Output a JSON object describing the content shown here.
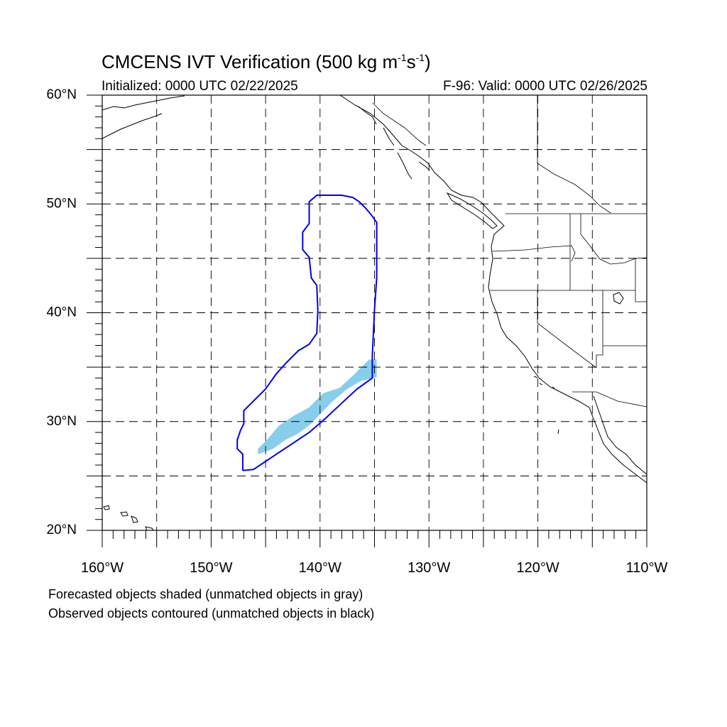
{
  "title": {
    "prefix": "CMCENS IVT Verification (500 kg m",
    "exp1": "-1",
    "mid": "s",
    "exp2": "-1",
    "suffix": ")"
  },
  "initialized": "Initialized: 0000 UTC 02/22/2025",
  "valid": "F-96: Valid: 0000 UTC 02/26/2025",
  "captions": [
    "Forecasted objects shaded (unmatched objects in gray)",
    "Observed objects contoured (unmatched objects in black)"
  ],
  "map": {
    "lon_range": [
      -160,
      -110
    ],
    "lat_range": [
      20,
      60
    ],
    "projection": "cylindrical equidistant",
    "gridlines": "dashed every 5 degrees",
    "lat_labels": [
      "20°N",
      "30°N",
      "40°N",
      "50°N",
      "60°N"
    ],
    "lat_label_values": [
      20,
      30,
      40,
      50,
      60
    ],
    "lon_labels": [
      "160°W",
      "150°W",
      "140°W",
      "130°W",
      "120°W",
      "110°W"
    ],
    "lon_label_values": [
      -160,
      -150,
      -140,
      -130,
      -120,
      -110
    ],
    "colors": {
      "forecast_shading": "#87ceeb",
      "observed_contour": "#0000ee",
      "coastline": "#000000",
      "grid": "#000000"
    },
    "forecast_object_shaded": [
      [
        -145.7,
        27.5
      ],
      [
        -144.8,
        28.4
      ],
      [
        -143.8,
        29.6
      ],
      [
        -142.3,
        30.6
      ],
      [
        -141.0,
        31.3
      ],
      [
        -139.7,
        32.6
      ],
      [
        -138.2,
        33.1
      ],
      [
        -137.0,
        34.2
      ],
      [
        -135.5,
        35.7
      ],
      [
        -134.8,
        35.7
      ],
      [
        -134.8,
        34.1
      ],
      [
        -136.3,
        33.7
      ],
      [
        -137.5,
        33.0
      ],
      [
        -138.8,
        31.9
      ],
      [
        -139.8,
        30.9
      ],
      [
        -140.8,
        29.8
      ],
      [
        -142.0,
        28.9
      ],
      [
        -143.2,
        28.3
      ],
      [
        -144.3,
        27.5
      ],
      [
        -145.7,
        27.0
      ]
    ],
    "observed_object_contour": [
      [
        -147.1,
        25.5
      ],
      [
        -146.1,
        25.6
      ],
      [
        -145.2,
        26.2
      ],
      [
        -144.0,
        27.0
      ],
      [
        -142.5,
        28.0
      ],
      [
        -141.0,
        29.0
      ],
      [
        -139.5,
        30.3
      ],
      [
        -138.1,
        31.6
      ],
      [
        -136.6,
        33.0
      ],
      [
        -135.2,
        34.0
      ],
      [
        -135.2,
        36.0
      ],
      [
        -135.0,
        40.3
      ],
      [
        -134.8,
        43.2
      ],
      [
        -134.8,
        48.3
      ],
      [
        -135.3,
        49.0
      ],
      [
        -135.8,
        49.6
      ],
      [
        -136.4,
        50.2
      ],
      [
        -137.0,
        50.6
      ],
      [
        -138.0,
        50.8
      ],
      [
        -139.0,
        50.8
      ],
      [
        -140.3,
        50.8
      ],
      [
        -141.0,
        50.2
      ],
      [
        -141.0,
        48.2
      ],
      [
        -141.6,
        47.4
      ],
      [
        -141.6,
        45.8
      ],
      [
        -141.0,
        45.1
      ],
      [
        -140.8,
        43.2
      ],
      [
        -140.3,
        42.5
      ],
      [
        -140.2,
        40.2
      ],
      [
        -140.3,
        38.1
      ],
      [
        -141.0,
        37.1
      ],
      [
        -142.0,
        36.5
      ],
      [
        -143.1,
        35.4
      ],
      [
        -144.0,
        34.4
      ],
      [
        -145.0,
        33.0
      ],
      [
        -146.0,
        32.0
      ],
      [
        -147.0,
        31.0
      ],
      [
        -147.0,
        29.8
      ],
      [
        -147.3,
        29.2
      ],
      [
        -147.6,
        28.3
      ],
      [
        -147.6,
        27.5
      ],
      [
        -147.1,
        27.0
      ],
      [
        -147.1,
        25.5
      ]
    ]
  }
}
